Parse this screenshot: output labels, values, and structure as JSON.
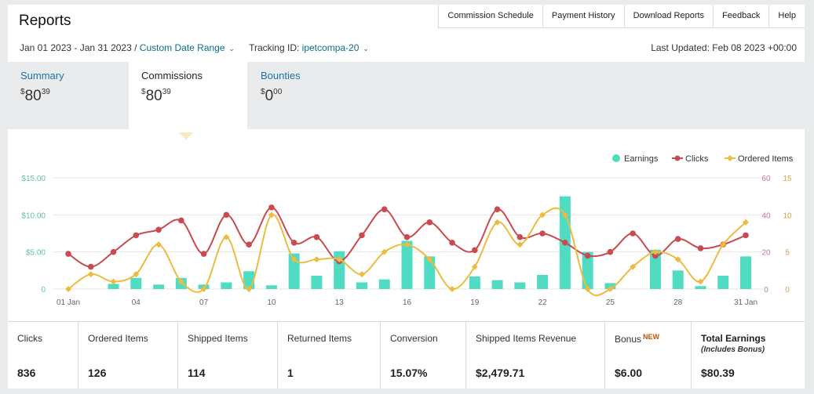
{
  "page": {
    "title": "Reports"
  },
  "nav": [
    {
      "label": "Commission Schedule"
    },
    {
      "label": "Payment History"
    },
    {
      "label": "Download Reports"
    },
    {
      "label": "Feedback"
    },
    {
      "label": "Help"
    }
  ],
  "filters": {
    "date_range": "Jan 01 2023 - Jan 31 2023 /",
    "custom_range": "Custom Date Range",
    "tracking_label": "Tracking ID:",
    "tracking_id": "ipetcompa-20",
    "last_updated": "Last Updated: Feb 08 2023 +00:00"
  },
  "tabs": [
    {
      "label": "Summary",
      "currency": "$",
      "whole": "80",
      "cents": "39"
    },
    {
      "label": "Commissions",
      "currency": "$",
      "whole": "80",
      "cents": "39"
    },
    {
      "label": "Bounties",
      "currency": "$",
      "whole": "0",
      "cents": "00"
    }
  ],
  "stats": [
    {
      "label": "Clicks",
      "value": "836"
    },
    {
      "label": "Ordered Items",
      "value": "126"
    },
    {
      "label": "Shipped Items",
      "value": "114"
    },
    {
      "label": "Returned Items",
      "value": "1"
    },
    {
      "label": "Conversion",
      "value": "15.07%"
    },
    {
      "label": "Shipped Items Revenue",
      "value": "$2,479.71"
    },
    {
      "label": "Bonus",
      "badge": "NEW",
      "value": "$6.00"
    },
    {
      "label": "Total Earnings",
      "sub": "(Includes Bonus)",
      "value": "$80.39"
    }
  ],
  "colors": {
    "earnings": "#4fdcc3",
    "clicks": "#c94a4f",
    "ordered": "#edbb42"
  },
  "chart_data": {
    "type": "bar",
    "days": 31,
    "x_tick_labels": [
      "01 Jan",
      "04",
      "07",
      "10",
      "13",
      "16",
      "19",
      "22",
      "25",
      "28",
      "31 Jan"
    ],
    "legend": [
      "Earnings",
      "Clicks",
      "Ordered Items"
    ],
    "legend_position": "top-right",
    "y_left": {
      "ticks": [
        "$15.00",
        "$10.00",
        "$5.00",
        "0"
      ],
      "lim": [
        0,
        15
      ]
    },
    "y_right_clicks": {
      "ticks": [
        "60",
        "40",
        "20",
        "0"
      ],
      "lim": [
        0,
        60
      ]
    },
    "y_right_items": {
      "ticks": [
        "15",
        "10",
        "5",
        "0"
      ],
      "lim": [
        0,
        15
      ]
    },
    "series": [
      {
        "name": "Earnings",
        "type": "bar",
        "values": [
          0,
          0,
          0.7,
          1.5,
          0.6,
          1.5,
          0.6,
          0.9,
          2.4,
          0.5,
          4.8,
          1.8,
          5.1,
          0.9,
          1.3,
          6.5,
          4.4,
          0,
          1.7,
          1.2,
          0.9,
          1.9,
          12.5,
          5.0,
          0.8,
          0,
          5.3,
          2.5,
          0.4,
          1.8,
          4.4
        ]
      },
      {
        "name": "Clicks",
        "type": "line",
        "values": [
          19,
          12,
          20,
          29,
          32,
          37,
          19,
          40,
          24,
          44,
          25,
          28,
          15,
          29,
          43,
          28,
          36,
          25,
          21,
          43,
          28,
          30,
          25,
          18,
          20,
          30,
          18,
          27,
          22,
          24,
          29
        ]
      },
      {
        "name": "Ordered Items",
        "type": "line",
        "values": [
          0,
          2,
          1,
          2,
          6,
          1,
          0,
          7,
          0,
          10,
          4,
          4,
          4,
          2,
          5,
          6,
          4,
          0,
          3,
          9,
          6,
          10,
          10,
          0,
          0,
          3,
          5,
          4,
          1,
          6,
          9
        ]
      }
    ]
  }
}
